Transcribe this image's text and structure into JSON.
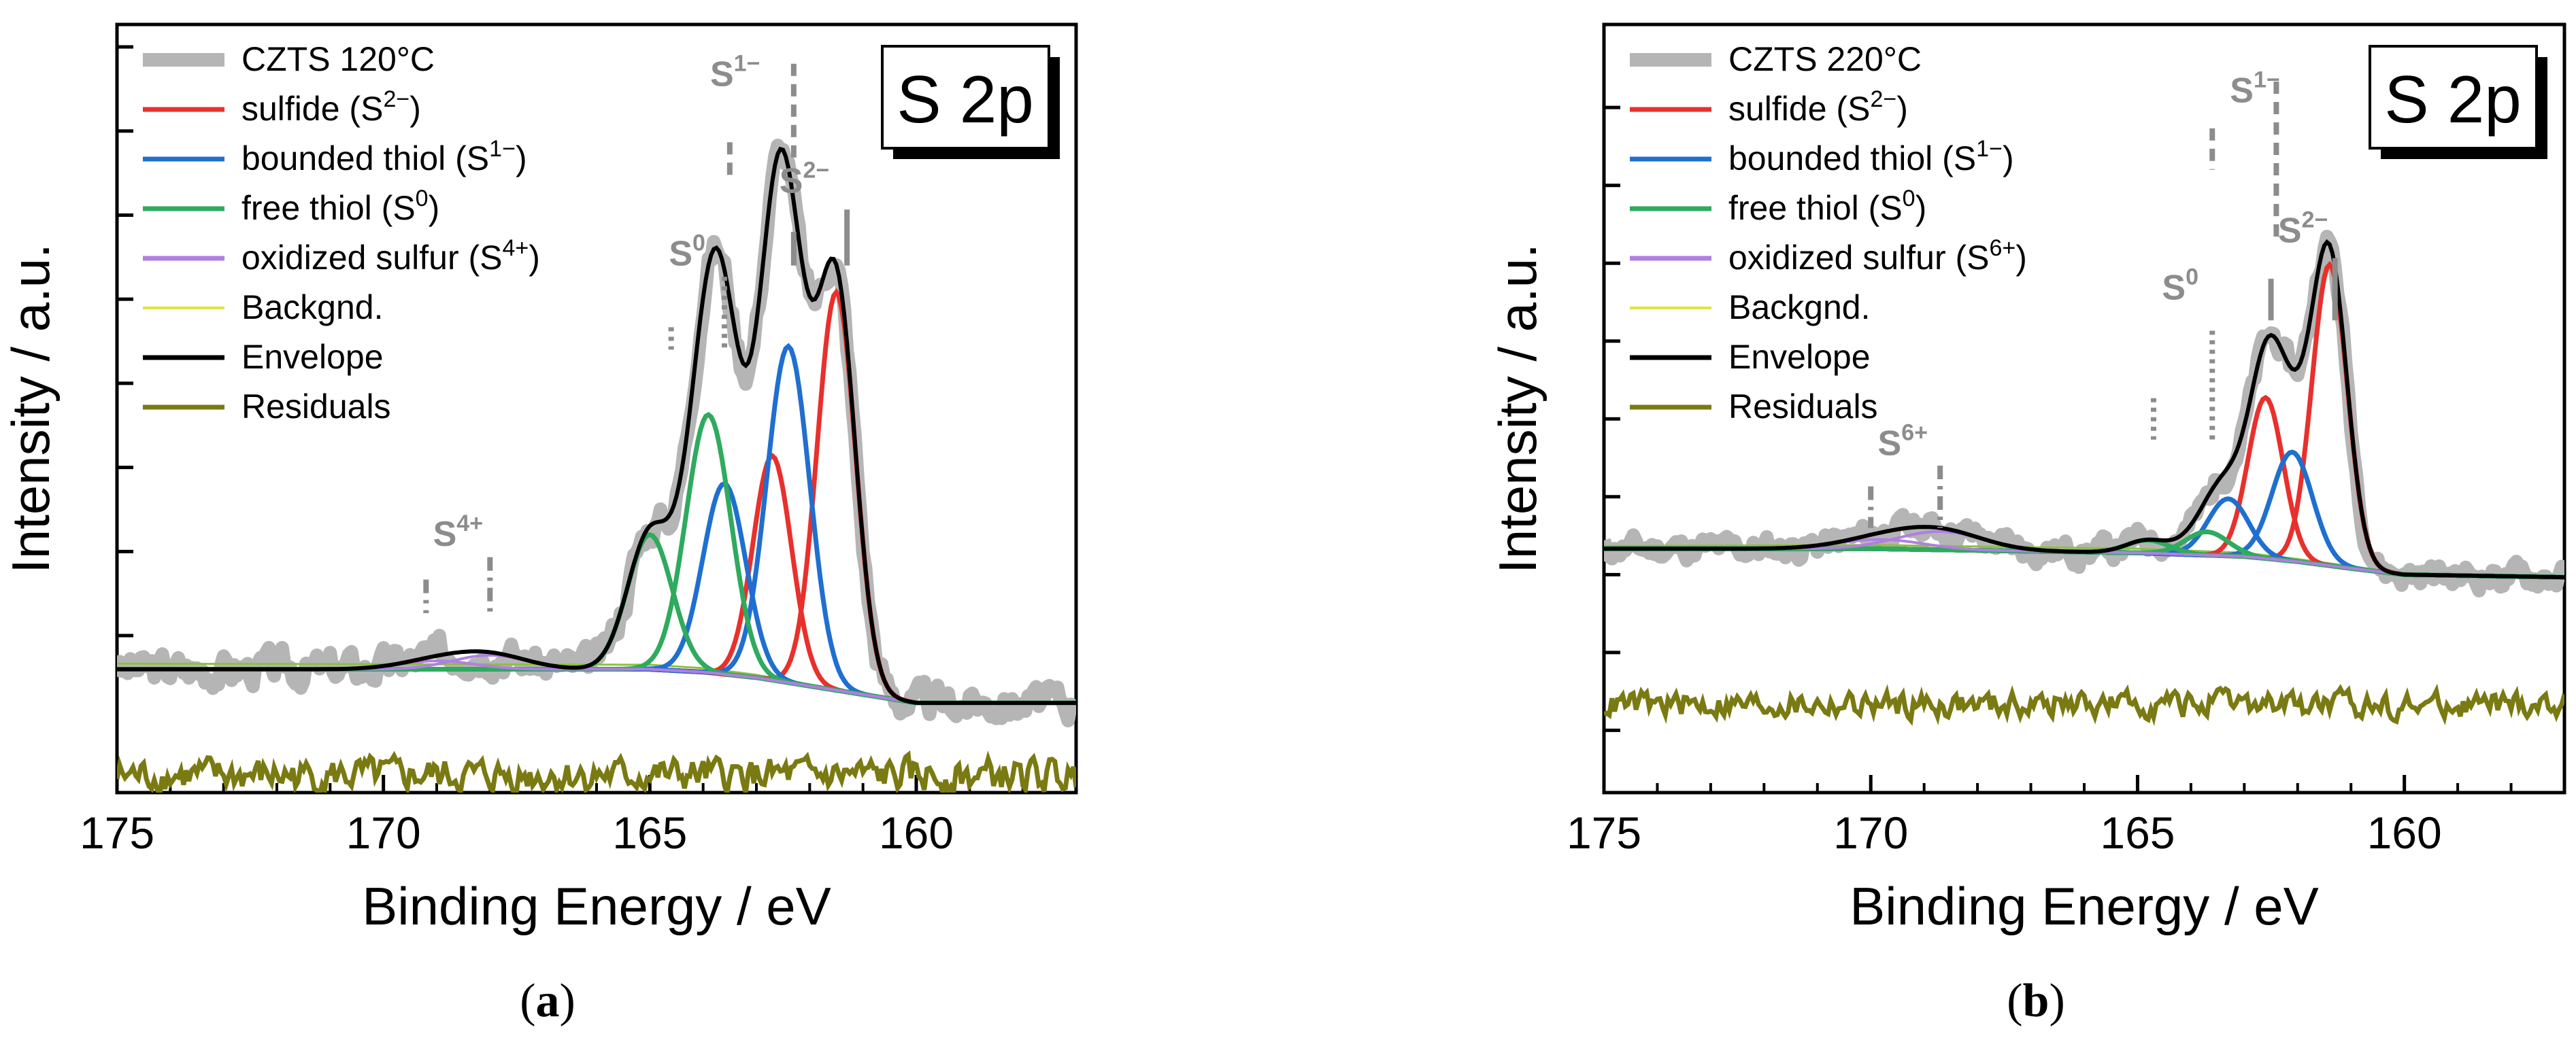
{
  "chart_data": [
    {
      "type": "line",
      "panel": "a",
      "caption_letter": "a",
      "title": "S 2p",
      "xlabel": "Binding Energy / eV",
      "ylabel": "Intensity / a.u.",
      "xlim": [
        175,
        157
      ],
      "xticks": [
        175,
        170,
        165,
        160
      ],
      "xtick_labels": [
        "175",
        "170",
        "165",
        "160"
      ],
      "ylim": [
        -0.12,
        1.25
      ],
      "yticks": [
        0.16,
        0.31,
        0.46,
        0.61,
        0.76,
        0.91,
        1.06,
        1.21
      ],
      "legend": [
        {
          "label": "CZTS 120°C",
          "sup": "",
          "color": "#b5b5b5"
        },
        {
          "label": "sulfide (S",
          "sup": "2−",
          "suffix": ")",
          "color": "#e8302c"
        },
        {
          "label": "bounded thiol (S",
          "sup": "1−",
          "suffix": ")",
          "color": "#1f6fd0"
        },
        {
          "label": "free thiol (S",
          "sup": "0",
          "suffix": ")",
          "color": "#2faa5e"
        },
        {
          "label": "oxidized sulfur (S",
          "sup": "4+",
          "suffix": ")",
          "color": "#b07fe0"
        },
        {
          "label": "Backgnd.",
          "sup": "",
          "color": "#e2e240"
        },
        {
          "label": "Envelope",
          "sup": "",
          "color": "#000000"
        },
        {
          "label": "Residuals",
          "sup": "",
          "color": "#7a7a12"
        }
      ],
      "background": {
        "x": [
          175,
          165,
          164,
          163,
          162,
          161,
          160,
          157
        ],
        "y": [
          0.1,
          0.1,
          0.095,
          0.085,
          0.07,
          0.055,
          0.04,
          0.04
        ]
      },
      "background2": {
        "x": [
          175,
          165,
          164,
          163,
          162,
          161,
          160,
          157
        ],
        "y": [
          0.11,
          0.108,
          0.102,
          0.09,
          0.073,
          0.056,
          0.042,
          0.042
        ]
      },
      "components": [
        {
          "name": "S2- 2p3/2",
          "color": "#e8302c",
          "center": 161.5,
          "height": 0.71,
          "width": 0.36
        },
        {
          "name": "S2- 2p1/2",
          "color": "#e8302c",
          "center": 162.7,
          "height": 0.4,
          "width": 0.36
        },
        {
          "name": "S1- 2p3/2",
          "color": "#1f6fd0",
          "center": 162.4,
          "height": 0.6,
          "width": 0.4
        },
        {
          "name": "S1- 2p1/2",
          "color": "#1f6fd0",
          "center": 163.6,
          "height": 0.34,
          "width": 0.4
        },
        {
          "name": "S0 2p3/2",
          "color": "#2faa5e",
          "center": 163.9,
          "height": 0.46,
          "width": 0.42
        },
        {
          "name": "S0 2p1/2",
          "color": "#2faa5e",
          "center": 165.0,
          "height": 0.24,
          "width": 0.42
        },
        {
          "name": "S4+ 2p3/2",
          "color": "#b07fe0",
          "center": 168.0,
          "height": 0.025,
          "width": 0.7
        },
        {
          "name": "S4+ 2p1/2",
          "color": "#b07fe0",
          "center": 169.0,
          "height": 0.015,
          "width": 0.7
        }
      ],
      "residual_level": -0.09,
      "noise_seed": 3,
      "noise_amp": 0.022,
      "marks": [
        {
          "label": "S",
          "sup": "1−",
          "style": "dash",
          "label_x": 163.4,
          "label_y": 1.14,
          "lines": [
            {
              "x": 163.5,
              "y0": 1.04,
              "y1": 0.98
            },
            {
              "x": 162.3,
              "y0": 1.18,
              "y1": 1.0
            }
          ]
        },
        {
          "label": "S",
          "sup": "2−",
          "style": "solid",
          "label_x": 162.1,
          "label_y": 0.95,
          "lines": [
            {
              "x": 162.3,
              "y0": 0.88,
              "y1": 0.82
            },
            {
              "x": 161.3,
              "y0": 0.92,
              "y1": 0.82
            }
          ]
        },
        {
          "label": "S",
          "sup": "0",
          "style": "dot",
          "label_x": 164.3,
          "label_y": 0.82,
          "lines": [
            {
              "x": 164.6,
              "y0": 0.71,
              "y1": 0.67
            },
            {
              "x": 163.6,
              "y0": 0.8,
              "y1": 0.67
            }
          ]
        },
        {
          "label": "S",
          "sup": "4+",
          "style": "dashdot",
          "label_x": 168.6,
          "label_y": 0.32,
          "lines": [
            {
              "x": 169.2,
              "y0": 0.26,
              "y1": 0.2
            },
            {
              "x": 168.0,
              "y0": 0.3,
              "y1": 0.2
            }
          ]
        }
      ]
    },
    {
      "type": "line",
      "panel": "b",
      "caption_letter": "b",
      "title": "S 2p",
      "xlabel": "Binding Energy / eV",
      "ylabel": "Intensity / a.u.",
      "xlim": [
        175,
        157
      ],
      "xticks": [
        175,
        170,
        165,
        160
      ],
      "xtick_labels": [
        "175",
        "170",
        "165",
        "160"
      ],
      "ylim": [
        -0.2,
        1.28
      ],
      "yticks": [
        -0.08,
        0.07,
        0.22,
        0.37,
        0.52,
        0.67,
        0.82,
        0.97,
        1.12
      ],
      "legend": [
        {
          "label": "CZTS 220°C",
          "sup": "",
          "color": "#b5b5b5"
        },
        {
          "label": "sulfide (S",
          "sup": "2−",
          "suffix": ")",
          "color": "#e8302c"
        },
        {
          "label": "bounded thiol (S",
          "sup": "1−",
          "suffix": ")",
          "color": "#1f6fd0"
        },
        {
          "label": "free thiol (S",
          "sup": "0",
          "suffix": ")",
          "color": "#2faa5e"
        },
        {
          "label": "oxidized sulfur (S",
          "sup": "6+",
          "suffix": ")",
          "color": "#b07fe0"
        },
        {
          "label": "Backgnd.",
          "sup": "",
          "color": "#e2e240"
        },
        {
          "label": "Envelope",
          "sup": "",
          "color": "#000000"
        },
        {
          "label": "Residuals",
          "sup": "",
          "color": "#7a7a12"
        }
      ],
      "background": {
        "x": [
          175,
          170,
          165,
          163,
          162,
          161,
          160,
          157
        ],
        "y": [
          0.27,
          0.27,
          0.262,
          0.255,
          0.245,
          0.232,
          0.22,
          0.215
        ]
      },
      "background2": {
        "x": [
          175,
          170,
          165,
          163,
          162,
          161,
          160,
          157
        ],
        "y": [
          0.275,
          0.277,
          0.27,
          0.262,
          0.25,
          0.236,
          0.222,
          0.217
        ]
      },
      "components": [
        {
          "name": "S2- 2p3/2",
          "color": "#e8302c",
          "center": 161.4,
          "height": 0.58,
          "width": 0.33
        },
        {
          "name": "S2- 2p1/2",
          "color": "#e8302c",
          "center": 162.6,
          "height": 0.31,
          "width": 0.33
        },
        {
          "name": "S1- 2p3/2",
          "color": "#1f6fd0",
          "center": 162.1,
          "height": 0.21,
          "width": 0.38
        },
        {
          "name": "S1- 2p1/2",
          "color": "#1f6fd0",
          "center": 163.3,
          "height": 0.11,
          "width": 0.38
        },
        {
          "name": "S0 2p3/2",
          "color": "#2faa5e",
          "center": 163.7,
          "height": 0.045,
          "width": 0.4
        },
        {
          "name": "S0 2p1/2",
          "color": "#2faa5e",
          "center": 164.8,
          "height": 0.025,
          "width": 0.4
        },
        {
          "name": "S6+ 2p3/2",
          "color": "#b07fe0",
          "center": 168.7,
          "height": 0.035,
          "width": 0.8
        },
        {
          "name": "S6+ 2p1/2",
          "color": "#b07fe0",
          "center": 169.8,
          "height": 0.018,
          "width": 0.8
        }
      ],
      "residual_level": -0.03,
      "noise_seed": 11,
      "noise_amp": 0.018,
      "marks": [
        {
          "label": "S",
          "sup": "1−",
          "style": "dash",
          "label_x": 162.8,
          "label_y": 1.13,
          "lines": [
            {
              "x": 163.6,
              "y0": 1.08,
              "y1": 1.0
            },
            {
              "x": 162.4,
              "y0": 1.17,
              "y1": 0.86
            }
          ]
        },
        {
          "label": "S",
          "sup": "2−",
          "style": "solid",
          "label_x": 161.9,
          "label_y": 0.86,
          "lines": [
            {
              "x": 162.5,
              "y0": 0.79,
              "y1": 0.71
            },
            {
              "x": 161.3,
              "y0": 0.83,
              "y1": 0.71
            }
          ]
        },
        {
          "label": "S",
          "sup": "0",
          "style": "dot",
          "label_x": 164.2,
          "label_y": 0.75,
          "lines": [
            {
              "x": 164.7,
              "y0": 0.56,
              "y1": 0.48
            },
            {
              "x": 163.6,
              "y0": 0.69,
              "y1": 0.48
            }
          ]
        },
        {
          "label": "S",
          "sup": "6+",
          "style": "dashdot",
          "label_x": 169.4,
          "label_y": 0.45,
          "lines": [
            {
              "x": 170.0,
              "y0": 0.39,
              "y1": 0.31
            },
            {
              "x": 168.7,
              "y0": 0.43,
              "y1": 0.31
            }
          ]
        }
      ]
    }
  ]
}
